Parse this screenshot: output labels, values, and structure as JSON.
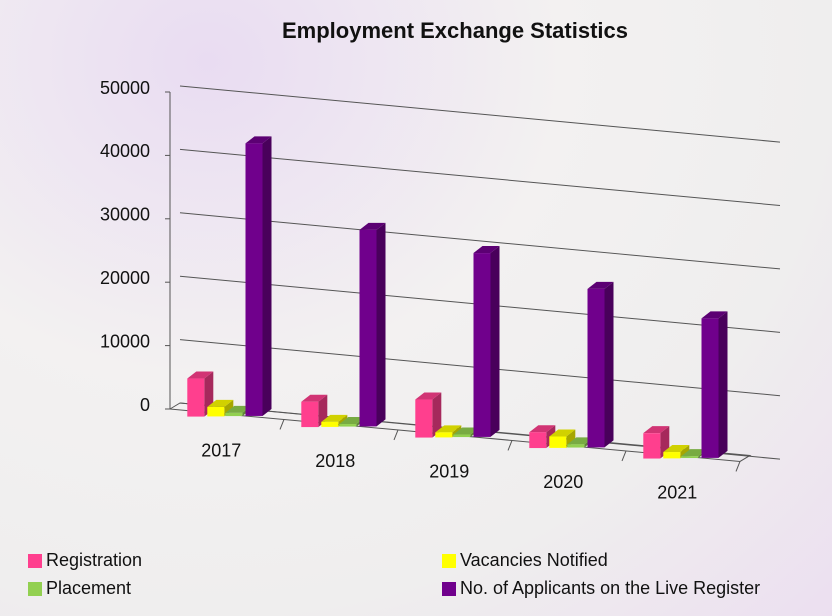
{
  "chart_data": {
    "type": "bar3d",
    "title": "Employment Exchange Statistics",
    "categories": [
      "2017",
      "2018",
      "2019",
      "2020",
      "2021"
    ],
    "series": [
      {
        "name": "Registration",
        "color": "#ff3f8e",
        "values": [
          6000,
          4000,
          6000,
          2500,
          4000
        ]
      },
      {
        "name": "Vacancies Notified",
        "color": "#ffff00",
        "values": [
          1500,
          800,
          800,
          1800,
          1000
        ]
      },
      {
        "name": "Placement",
        "color": "#92d050",
        "values": [
          500,
          400,
          400,
          500,
          300
        ]
      },
      {
        "name": "No. of Applicants on the Live Register",
        "color": "#70008c",
        "values": [
          43000,
          31000,
          29000,
          25000,
          22000
        ]
      }
    ],
    "ylim": [
      0,
      50000
    ],
    "yticks": [
      0,
      10000,
      20000,
      30000,
      40000,
      50000
    ],
    "grid": true,
    "legend": "bottom"
  }
}
